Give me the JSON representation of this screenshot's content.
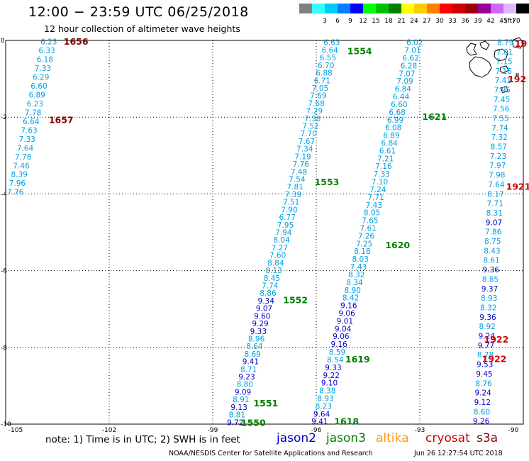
{
  "header": {
    "title": "12:00 − 23:59 UTC 06/25/2018",
    "subtitle": "12 hour collection of altimeter wave heights"
  },
  "colorbar": {
    "unit": "(ft)",
    "levels": [
      {
        "label": "",
        "color": "#808080"
      },
      {
        "label": "3",
        "color": "#33ffff"
      },
      {
        "label": "6",
        "color": "#00ccff"
      },
      {
        "label": "9",
        "color": "#0080ff"
      },
      {
        "label": "12",
        "color": "#0000ff"
      },
      {
        "label": "15",
        "color": "#00ff00"
      },
      {
        "label": "18",
        "color": "#00c000"
      },
      {
        "label": "21",
        "color": "#008000"
      },
      {
        "label": "24",
        "color": "#ffff00"
      },
      {
        "label": "27",
        "color": "#ffcc00"
      },
      {
        "label": "30",
        "color": "#ff8000"
      },
      {
        "label": "33",
        "color": "#ff0000"
      },
      {
        "label": "36",
        "color": "#cc0000"
      },
      {
        "label": "39",
        "color": "#990000"
      },
      {
        "label": "42",
        "color": "#990099"
      },
      {
        "label": "45",
        "color": "#cc66ff"
      },
      {
        "label": "70",
        "color": "#e0b8ff"
      },
      {
        "label": "",
        "color": "#000000"
      }
    ]
  },
  "axes": {
    "x_ticks": [
      {
        "lon": -105,
        "label": "-105"
      },
      {
        "lon": -102,
        "label": "-102"
      },
      {
        "lon": -99,
        "label": "-99"
      },
      {
        "lon": -96,
        "label": "-96"
      },
      {
        "lon": -93,
        "label": "-93"
      },
      {
        "lon": -90,
        "label": "-90"
      }
    ],
    "y_ticks": [
      {
        "lat": 0,
        "label": "0"
      },
      {
        "lat": -2,
        "label": "-2"
      },
      {
        "lat": -4,
        "label": "-4"
      },
      {
        "lat": -6,
        "label": "-6"
      },
      {
        "lat": -8,
        "label": "-8"
      },
      {
        "lat": -10,
        "label": "-10"
      }
    ],
    "lon_range": [
      -105,
      -90
    ],
    "lat_range": [
      -10,
      0
    ]
  },
  "colors": {
    "jason2": "#0000cc",
    "jason3": "#008000",
    "altika": "#ff9900",
    "cryosat": "#cc0000",
    "s3a": "#800000",
    "swh_low": "#00a0e0",
    "swh_high": "#0000cc",
    "grid": "#000000"
  },
  "footer": {
    "note": "note:  1) Time is in UTC; 2) SWH is in feet",
    "satellites": [
      {
        "name": "jason2",
        "color": "#0000cc"
      },
      {
        "name": "jason3",
        "color": "#008000"
      },
      {
        "name": "altika",
        "color": "#ff9900"
      },
      {
        "name": "cryosat",
        "color": "#cc0000"
      },
      {
        "name": "s3a",
        "color": "#800000"
      }
    ],
    "credit": "NOAA/NESDIS Center for Satellite Applications and Research",
    "timestamp": "Jun 26 12:27:54 UTC 2018"
  },
  "map": {
    "time_labels": [
      {
        "text": "1656",
        "lon": -103.32,
        "lat": -0.02,
        "color": "#800000"
      },
      {
        "text": "1657",
        "lon": -103.75,
        "lat": -2.06,
        "color": "#800000"
      },
      {
        "text": "1554",
        "lon": -95.1,
        "lat": -0.27,
        "color": "#008000"
      },
      {
        "text": "1553",
        "lon": -96.05,
        "lat": -3.68,
        "color": "#008000"
      },
      {
        "text": "1552",
        "lon": -96.96,
        "lat": -6.76,
        "color": "#008000"
      },
      {
        "text": "1551",
        "lon": -97.82,
        "lat": -9.45,
        "color": "#008000"
      },
      {
        "text": "1550",
        "lon": -98.18,
        "lat": -9.95,
        "color": "#008000"
      },
      {
        "text": "1621",
        "lon": -92.93,
        "lat": -1.98,
        "color": "#008000"
      },
      {
        "text": "1620",
        "lon": -94.0,
        "lat": -5.32,
        "color": "#008000"
      },
      {
        "text": "1619",
        "lon": -95.16,
        "lat": -8.3,
        "color": "#008000"
      },
      {
        "text": "1618",
        "lon": -95.48,
        "lat": -9.92,
        "color": "#008000"
      },
      {
        "text": "19",
        "lon": -90.25,
        "lat": -0.07,
        "color": "#cc0000"
      },
      {
        "text": "192",
        "lon": -90.45,
        "lat": -1.0,
        "color": "#cc0000"
      },
      {
        "text": "1921",
        "lon": -90.5,
        "lat": -3.8,
        "color": "#cc0000"
      },
      {
        "text": "1922",
        "lon": -91.14,
        "lat": -7.78,
        "color": "#cc0000"
      },
      {
        "text": "1922",
        "lon": -91.2,
        "lat": -8.29,
        "color": "#cc0000"
      }
    ],
    "tracks": [
      {
        "name": "track-1656",
        "start": [
          -103.75,
          -0.03
        ],
        "end": [
          -104.72,
          -3.95
        ],
        "values": [
          "6.23",
          "6.33",
          "6.18",
          "7.33",
          "6.29",
          "6.60",
          "6.89",
          "6.23",
          "7.78",
          "6.64",
          "7.63",
          "7.33",
          "7.64",
          "7.78",
          "7.46",
          "8.39",
          "7.96",
          "7.76"
        ]
      },
      {
        "name": "track-1554",
        "start": [
          -95.55,
          -0.05
        ],
        "end": [
          -98.35,
          -9.95
        ],
        "values": [
          "6.63",
          "6.64",
          "6.55",
          "6.70",
          "6.88",
          "6.71",
          "7.05",
          "7.69",
          "7.68",
          "7.29",
          "7.38",
          "7.52",
          "7.70",
          "7.67",
          "7.34",
          "7.19",
          "7.76",
          "7.48",
          "7.54",
          "7.81",
          "7.39",
          "7.51",
          "7.90",
          "6.77",
          "7.95",
          "7.94",
          "8.04",
          "7.27",
          "7.60",
          "8.84",
          "8.13",
          "8.45",
          "7.74",
          "8.86",
          "9.34",
          "9.07",
          "9.60",
          "9.29",
          "9.33",
          "8.96",
          "8.64",
          "8.69",
          "9.41",
          "8.71",
          "9.23",
          "8.80",
          "9.09",
          "8.91",
          "9.13",
          "8.81",
          "9.72"
        ]
      },
      {
        "name": "track-1621",
        "start": [
          -93.15,
          -0.05
        ],
        "end": [
          -95.9,
          -9.93
        ],
        "values": [
          "6.02",
          "7.01",
          "6.62",
          "6.28",
          "7.07",
          "7.09",
          "6.84",
          "6.44",
          "6.60",
          "6.68",
          "6.99",
          "6.08",
          "6.89",
          "6.84",
          "6.61",
          "7.21",
          "7.16",
          "7.33",
          "7.10",
          "7.24",
          "7.71",
          "7.43",
          "8.05",
          "7.65",
          "7.61",
          "7.26",
          "7.25",
          "8.18",
          "8.03",
          "7.43",
          "8.32",
          "8.34",
          "8.90",
          "8.42",
          "9.16",
          "9.06",
          "9.01",
          "9.04",
          "9.06",
          "9.16",
          "8.59",
          "8.54",
          "9.33",
          "9.22",
          "9.10",
          "8.38",
          "8.93",
          "8.23",
          "9.64",
          "9.41"
        ]
      },
      {
        "name": "track-1921",
        "start": [
          -90.52,
          -0.05
        ],
        "end": [
          -91.22,
          -9.92
        ],
        "values": [
          "8.79",
          "7.01",
          "7.15",
          "7.16",
          "7.41",
          "7.95",
          "7.45",
          "7.56",
          "7.55",
          "7.74",
          "7.32",
          "8.57",
          "7.23",
          "7.97",
          "7.98",
          "7.64",
          "8.17",
          "7.71",
          "8.31",
          "9.07",
          "7.86",
          "8.75",
          "8.43",
          "8.61",
          "9.36",
          "8.85",
          "9.37",
          "8.93",
          "8.32",
          "9.36",
          "8.92",
          "9.24",
          "9.77",
          "8.78",
          "9.53",
          "9.45",
          "8.76",
          "9.24",
          "9.12",
          "8.60",
          "9.26"
        ]
      }
    ]
  }
}
